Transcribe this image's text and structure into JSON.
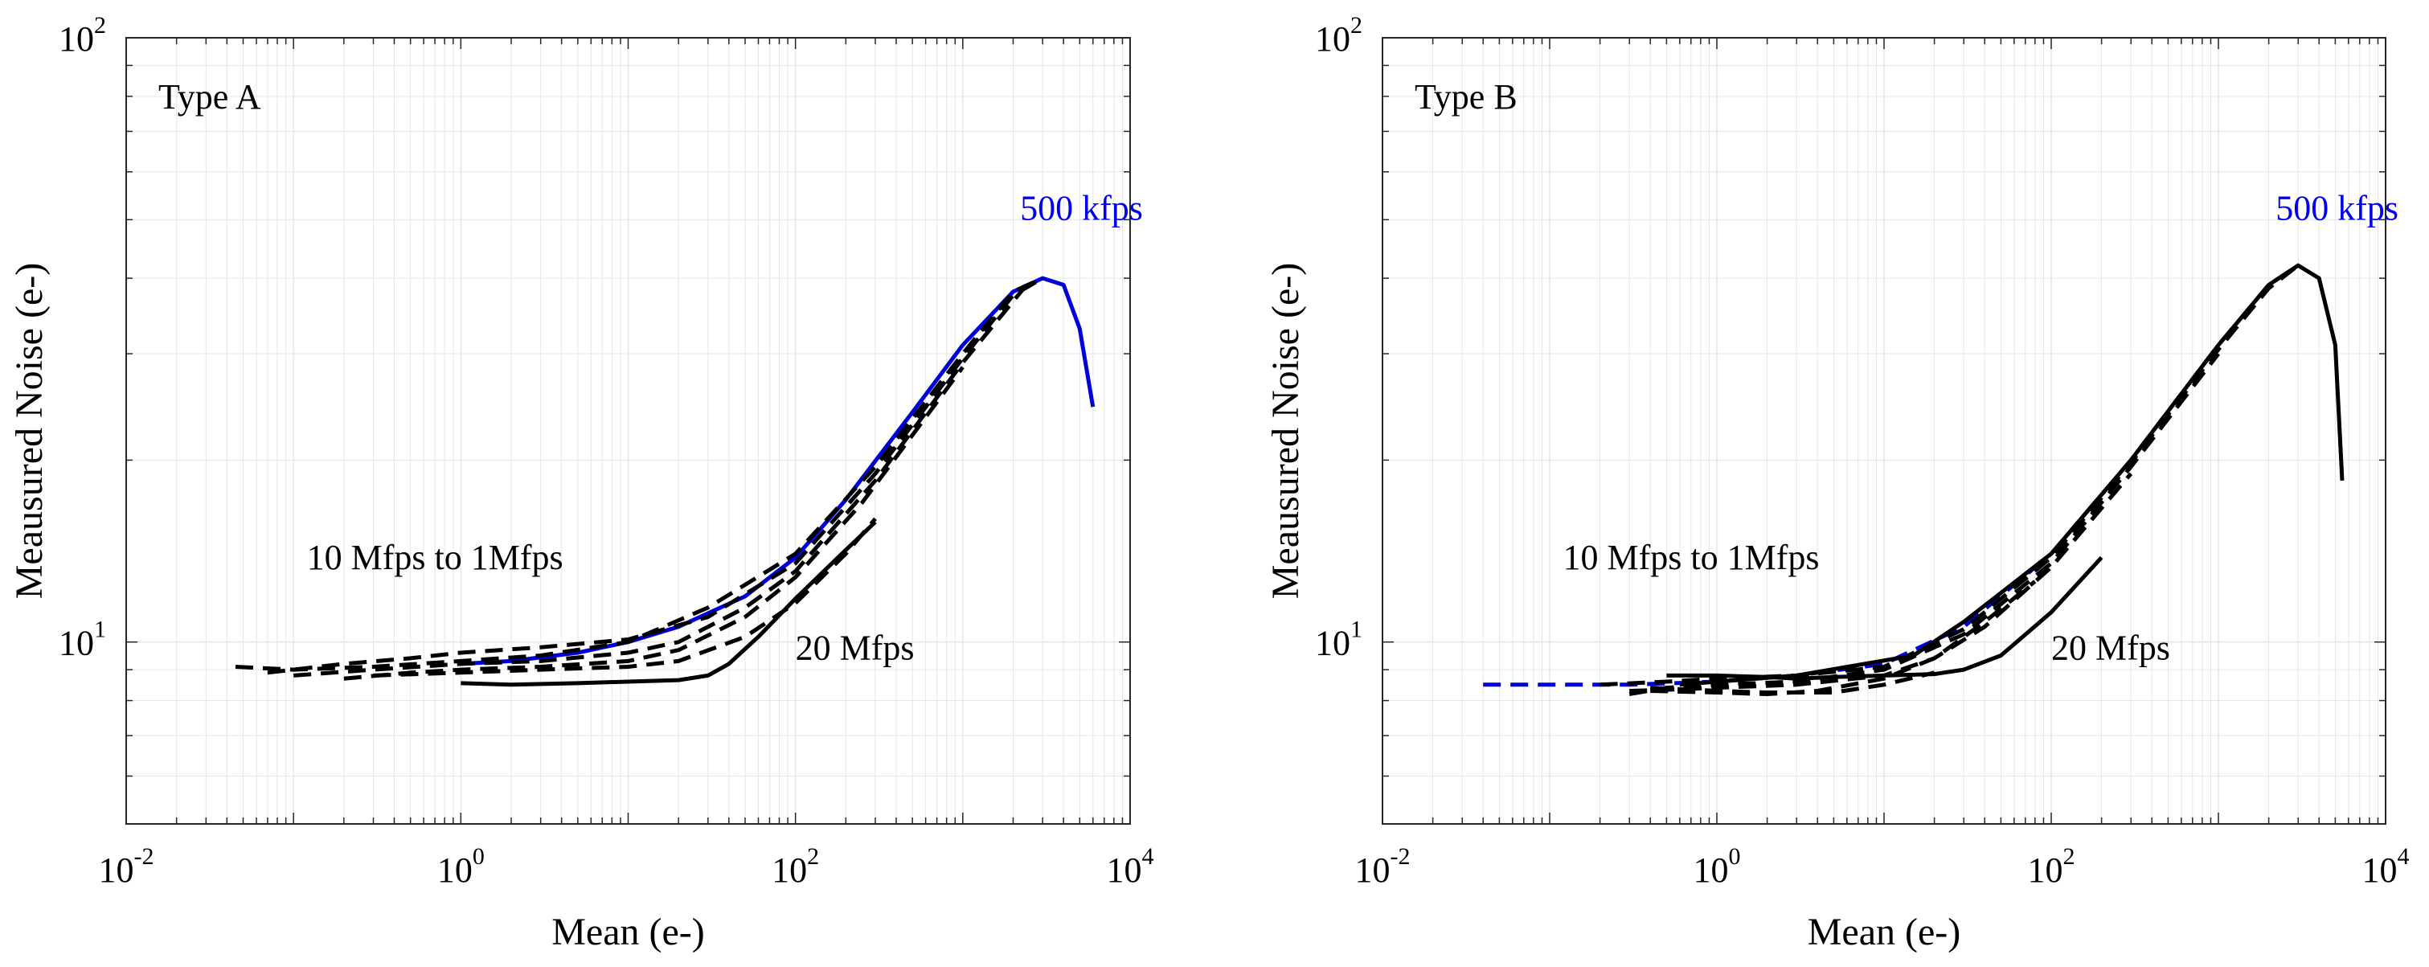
{
  "chart_data": [
    {
      "type": "line",
      "panel_label": "Type A",
      "xlabel": "Mean (e-)",
      "ylabel": "Meausured Noise (e-)",
      "xscale": "log",
      "yscale": "log",
      "xlim": [
        0.01,
        10000
      ],
      "ylim": [
        5,
        100
      ],
      "xticks": [
        {
          "base": "10",
          "exp": "-2"
        },
        {
          "base": "10",
          "exp": "0"
        },
        {
          "base": "10",
          "exp": "2"
        },
        {
          "base": "10",
          "exp": "4"
        }
      ],
      "yticks": [
        {
          "base": "10",
          "exp": "1",
          "value": 10
        },
        {
          "base": "10",
          "exp": "2",
          "value": 100
        }
      ],
      "grid": true,
      "annotations": [
        {
          "text": "500 kfps",
          "color": "#0000ee",
          "x": 2200,
          "y": 50
        },
        {
          "text": "10 Mfps to 1Mfps",
          "color": "#000000",
          "x": 0.12,
          "y": 13.2
        },
        {
          "text": "20 Mfps",
          "color": "#000000",
          "x": 100,
          "y": 9.35
        }
      ],
      "series": [
        {
          "name": "500 kfps",
          "style": "solid",
          "color": "#0000dd",
          "x": [
            1,
            2,
            5,
            10,
            20,
            50,
            100,
            200,
            500,
            1000,
            2000,
            3000,
            4000,
            5000,
            6000
          ],
          "y": [
            9.2,
            9.3,
            9.6,
            10.0,
            10.6,
            11.9,
            13.8,
            17.2,
            24.0,
            31.0,
            38.0,
            40.0,
            39.0,
            33.0,
            24.5
          ]
        },
        {
          "name": "10 Mfps to 1 Mfps #1",
          "style": "dashed",
          "color": "#000000",
          "x": [
            0.045,
            0.1,
            0.3,
            1,
            3,
            10,
            30,
            100,
            300,
            1000,
            2000,
            3000
          ],
          "y": [
            9.1,
            9.0,
            9.1,
            9.3,
            9.5,
            10.0,
            11.4,
            14.0,
            19.5,
            30.0,
            38.0,
            40.0
          ]
        },
        {
          "name": "10 Mfps to 1 Mfps #2",
          "style": "dashed",
          "color": "#000000",
          "x": [
            0.07,
            0.2,
            0.5,
            1,
            3,
            10,
            30,
            100,
            300,
            1000,
            2000,
            3000
          ],
          "y": [
            8.9,
            9.2,
            9.4,
            9.6,
            9.8,
            10.1,
            11.0,
            13.5,
            19.0,
            29.5,
            37.5,
            40.0
          ]
        },
        {
          "name": "10 Mfps to 1 Mfps #3",
          "style": "dashed",
          "color": "#000000",
          "x": [
            0.1,
            0.3,
            1,
            3,
            10,
            20,
            50,
            100,
            300,
            1000,
            2500
          ],
          "y": [
            8.8,
            9.0,
            9.2,
            9.3,
            9.6,
            10.0,
            11.4,
            13.1,
            18.5,
            29.0,
            39.5
          ]
        },
        {
          "name": "10 Mfps to 1 Mfps #4",
          "style": "dashed",
          "color": "#000000",
          "x": [
            0.2,
            0.5,
            1,
            3,
            10,
            20,
            50,
            100,
            250,
            500,
            1000
          ],
          "y": [
            8.7,
            8.9,
            9.0,
            9.1,
            9.3,
            9.7,
            11.0,
            12.8,
            17.0,
            22.0,
            28.5
          ]
        },
        {
          "name": "10 Mfps to 1 Mfps #5",
          "style": "dashed",
          "color": "#000000",
          "x": [
            0.3,
            1,
            3,
            10,
            20,
            50,
            100,
            200,
            300
          ],
          "y": [
            8.8,
            8.9,
            9.0,
            9.1,
            9.3,
            10.2,
            11.6,
            14.0,
            16.0
          ]
        },
        {
          "name": "20 Mfps",
          "style": "solid",
          "color": "#000000",
          "x": [
            1,
            2,
            5,
            10,
            20,
            30,
            40,
            60,
            100,
            200,
            300
          ],
          "y": [
            8.55,
            8.5,
            8.55,
            8.6,
            8.65,
            8.8,
            9.2,
            10.2,
            11.8,
            14.2,
            15.8
          ]
        }
      ]
    },
    {
      "type": "line",
      "panel_label": "Type B",
      "xlabel": "Mean (e-)",
      "ylabel": "Meausured Noise (e-)",
      "xscale": "log",
      "yscale": "log",
      "xlim": [
        0.01,
        10000
      ],
      "ylim": [
        5,
        100
      ],
      "xticks": [
        {
          "base": "10",
          "exp": "-2"
        },
        {
          "base": "10",
          "exp": "0"
        },
        {
          "base": "10",
          "exp": "2"
        },
        {
          "base": "10",
          "exp": "4"
        }
      ],
      "yticks": [
        {
          "base": "10",
          "exp": "1",
          "value": 10
        },
        {
          "base": "10",
          "exp": "2",
          "value": 100
        }
      ],
      "grid": true,
      "annotations": [
        {
          "text": "500 kfps",
          "color": "#0000ee",
          "x": 2200,
          "y": 50
        },
        {
          "text": "10 Mfps to 1Mfps",
          "color": "#000000",
          "x": 0.12,
          "y": 13.2
        },
        {
          "text": "20 Mfps",
          "color": "#000000",
          "x": 100,
          "y": 9.35
        }
      ],
      "series": [
        {
          "name": "500 kfps",
          "style": "dashed",
          "color": "#0000dd",
          "x": [
            0.04,
            0.1,
            0.3,
            1,
            3,
            10,
            30,
            100,
            300,
            1000,
            2000,
            3000
          ],
          "y": [
            8.5,
            8.5,
            8.5,
            8.6,
            8.8,
            9.2,
            10.6,
            14.0,
            20.0,
            31.0,
            39.0,
            42.0
          ]
        },
        {
          "name": "10 Mfps to 1 Mfps #1",
          "style": "dashed",
          "color": "#000000",
          "x": [
            0.2,
            0.5,
            1,
            3,
            10,
            30,
            100,
            300,
            1000,
            2000,
            3000
          ],
          "y": [
            8.5,
            8.6,
            8.7,
            8.8,
            9.1,
            10.5,
            13.8,
            19.8,
            30.5,
            38.5,
            42.0
          ]
        },
        {
          "name": "10 Mfps to 1 Mfps #2",
          "style": "dashed",
          "color": "#000000",
          "x": [
            0.3,
            0.5,
            1,
            3,
            10,
            30,
            100,
            300,
            1000
          ],
          "y": [
            8.2,
            8.4,
            8.5,
            8.6,
            9.0,
            10.3,
            13.5,
            19.5,
            30.0
          ]
        },
        {
          "name": "10 Mfps to 1 Mfps #3",
          "style": "dashed",
          "color": "#000000",
          "x": [
            0.3,
            0.6,
            1,
            3,
            10,
            20,
            40,
            100,
            300
          ],
          "y": [
            8.3,
            8.35,
            8.4,
            8.5,
            8.8,
            9.4,
            10.6,
            13.3,
            19.0
          ]
        },
        {
          "name": "10 Mfps to 1 Mfps #4",
          "style": "dashed",
          "color": "#000000",
          "x": [
            0.4,
            1,
            2,
            4,
            10,
            20,
            40,
            80
          ],
          "y": [
            8.3,
            8.25,
            8.2,
            8.3,
            8.7,
            9.4,
            10.8,
            12.6
          ]
        },
        {
          "name": "10 Mfps to 1 Mfps #5",
          "style": "dashed",
          "color": "#000000",
          "x": [
            0.4,
            1,
            2,
            5,
            10,
            20
          ],
          "y": [
            8.4,
            8.3,
            8.25,
            8.25,
            8.5,
            8.9
          ]
        },
        {
          "name": "20 Mfps",
          "style": "solid",
          "color": "#000000",
          "x": [
            0.5,
            1,
            2,
            3,
            5,
            10,
            20,
            30,
            50,
            100,
            200
          ],
          "y": [
            8.8,
            8.8,
            8.75,
            8.7,
            8.75,
            8.8,
            8.85,
            9.0,
            9.5,
            11.2,
            13.8
          ]
        },
        {
          "name": "10 Mfps to 1 Mfps #6",
          "style": "solid",
          "color": "#000000",
          "x": [
            0.6,
            1,
            3,
            15,
            30,
            100,
            300,
            1000,
            2000,
            3000,
            4000,
            5000,
            5500
          ],
          "y": [
            8.5,
            8.6,
            8.8,
            9.5,
            10.8,
            14.0,
            20.0,
            31.0,
            39.0,
            42.0,
            40.0,
            31.0,
            18.5
          ]
        }
      ]
    }
  ]
}
